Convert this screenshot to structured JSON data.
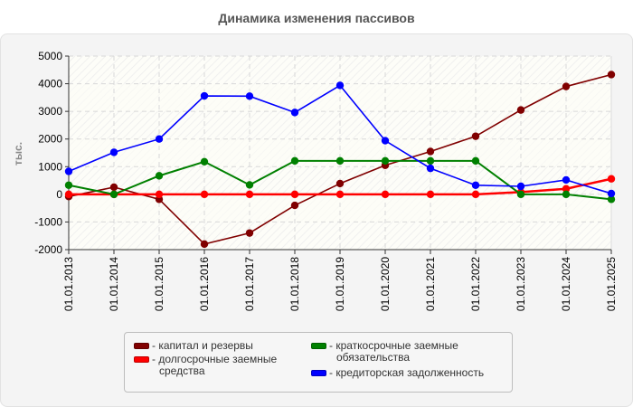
{
  "title": "Динамика изменения пассивов",
  "chart_data": {
    "type": "line",
    "title": "Динамика изменения пассивов",
    "xlabel": "",
    "ylabel": "тыс.",
    "ylim": [
      -2000,
      5000
    ],
    "yticks": [
      5000,
      4000,
      3000,
      2000,
      1000,
      0,
      -1000,
      -2000
    ],
    "grid": true,
    "legend_position": "bottom",
    "categories": [
      "01.01.2013",
      "01.01.2014",
      "01.01.2015",
      "01.01.2016",
      "01.01.2017",
      "01.01.2018",
      "01.01.2019",
      "01.01.2020",
      "01.01.2021",
      "01.01.2022",
      "01.01.2023",
      "01.01.2024",
      "01.01.2025"
    ],
    "series": [
      {
        "name": "капитал и резервы",
        "color": "#800000",
        "values": [
          -80,
          260,
          -180,
          -1800,
          -1400,
          -400,
          390,
          1050,
          1550,
          2100,
          3050,
          3900,
          4330
        ]
      },
      {
        "name": "долгосрочные заемные средства",
        "color": "#ff0000",
        "values": [
          0,
          0,
          0,
          0,
          0,
          0,
          0,
          0,
          0,
          0,
          80,
          200,
          560
        ]
      },
      {
        "name": "краткосрочные заемные обязательства",
        "color": "#008000",
        "values": [
          330,
          0,
          670,
          1180,
          340,
          1210,
          1210,
          1210,
          1210,
          1210,
          0,
          0,
          -180
        ]
      },
      {
        "name": "кредиторская задолженность",
        "color": "#0000ff",
        "values": [
          830,
          1520,
          2000,
          3560,
          3550,
          2960,
          3940,
          1940,
          940,
          330,
          290,
          520,
          30
        ]
      }
    ]
  },
  "legend": {
    "items": [
      {
        "label": "капитал и резервы",
        "color": "#800000"
      },
      {
        "label": "долгосрочные заемные средства",
        "color": "#ff0000"
      },
      {
        "label": "краткосрочные заемные обязательства",
        "color": "#008000"
      },
      {
        "label": "кредиторская задолженность",
        "color": "#0000ff"
      }
    ],
    "text": {
      "i0": "- капитал и резервы",
      "i1a": "- долгосрочные заемные",
      "i1b": "средства",
      "i2a": "- краткосрочные заемные",
      "i2b": "обязательства",
      "i3": "- кредиторская задолженность"
    }
  }
}
